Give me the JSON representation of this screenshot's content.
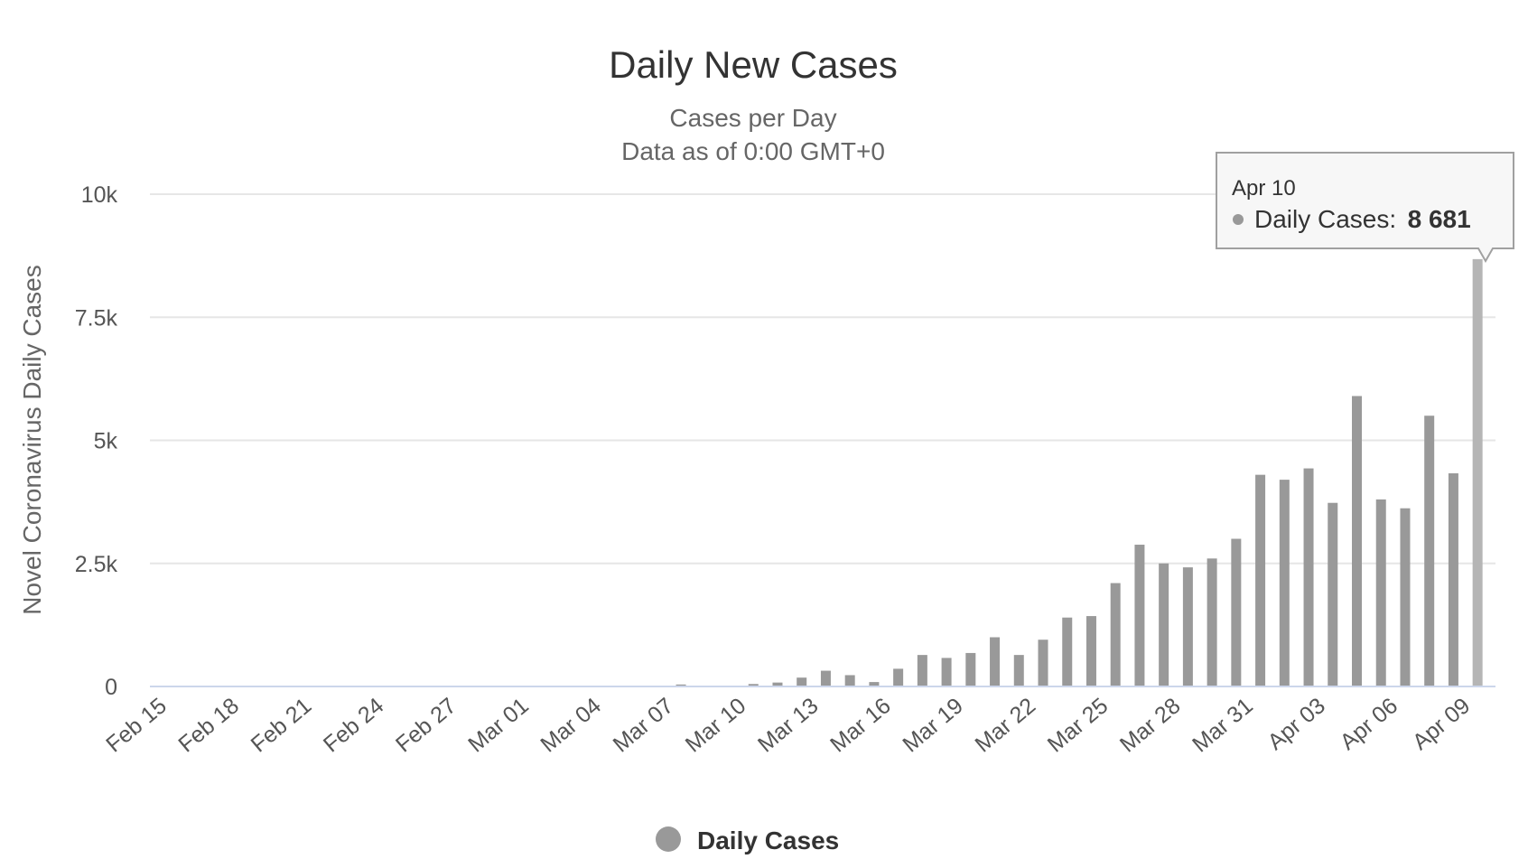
{
  "chart_data": {
    "type": "bar",
    "title": "Daily New Cases",
    "subtitle_lines": [
      "Cases per Day",
      "Data as of 0:00 GMT+0"
    ],
    "ylabel": "Novel Coronavirus Daily Cases",
    "ylim": [
      0,
      10000
    ],
    "yticks": [
      "0",
      "2.5k",
      "5k",
      "7.5k",
      "10k"
    ],
    "ytick_values": [
      0,
      2500,
      5000,
      7500,
      10000
    ],
    "grid": true,
    "legend_position": "bottom-center",
    "colors": {
      "bar": "#999999",
      "bar_highlight": "#b5b5b5",
      "grid": "#e6e6e6",
      "axis": "#ccd6eb"
    },
    "x_tick_labels": [
      "Feb 15",
      "Feb 18",
      "Feb 21",
      "Feb 24",
      "Feb 27",
      "Mar 01",
      "Mar 04",
      "Mar 07",
      "Mar 10",
      "Mar 13",
      "Mar 16",
      "Mar 19",
      "Mar 22",
      "Mar 25",
      "Mar 28",
      "Mar 31",
      "Apr 03",
      "Apr 06",
      "Apr 09"
    ],
    "categories": [
      "Feb 15",
      "Feb 16",
      "Feb 17",
      "Feb 18",
      "Feb 19",
      "Feb 20",
      "Feb 21",
      "Feb 22",
      "Feb 23",
      "Feb 24",
      "Feb 25",
      "Feb 26",
      "Feb 27",
      "Feb 28",
      "Feb 29",
      "Mar 01",
      "Mar 02",
      "Mar 03",
      "Mar 04",
      "Mar 05",
      "Mar 06",
      "Mar 07",
      "Mar 08",
      "Mar 09",
      "Mar 10",
      "Mar 11",
      "Mar 12",
      "Mar 13",
      "Mar 14",
      "Mar 15",
      "Mar 16",
      "Mar 17",
      "Mar 18",
      "Mar 19",
      "Mar 20",
      "Mar 21",
      "Mar 22",
      "Mar 23",
      "Mar 24",
      "Mar 25",
      "Mar 26",
      "Mar 27",
      "Mar 28",
      "Mar 29",
      "Mar 30",
      "Mar 31",
      "Apr 01",
      "Apr 02",
      "Apr 03",
      "Apr 04",
      "Apr 05",
      "Apr 06",
      "Apr 07",
      "Apr 08",
      "Apr 09",
      "Apr 10"
    ],
    "series": [
      {
        "name": "Daily Cases",
        "values": [
          0,
          0,
          0,
          0,
          0,
          0,
          0,
          0,
          0,
          0,
          0,
          0,
          0,
          0,
          0,
          0,
          0,
          0,
          0,
          0,
          0,
          0,
          40,
          0,
          0,
          50,
          80,
          180,
          320,
          230,
          90,
          360,
          640,
          580,
          680,
          1000,
          640,
          950,
          1400,
          1430,
          2100,
          2880,
          2500,
          2420,
          2600,
          3000,
          4300,
          4200,
          4430,
          3730,
          5900,
          3800,
          3620,
          5500,
          4330,
          8681
        ]
      }
    ],
    "highlight_index": 55,
    "tooltip": {
      "date": "Apr 10",
      "series_label": "Daily Cases:",
      "value_text": "8 681"
    },
    "legend": [
      {
        "label": "Daily Cases",
        "color": "#999999"
      }
    ]
  }
}
